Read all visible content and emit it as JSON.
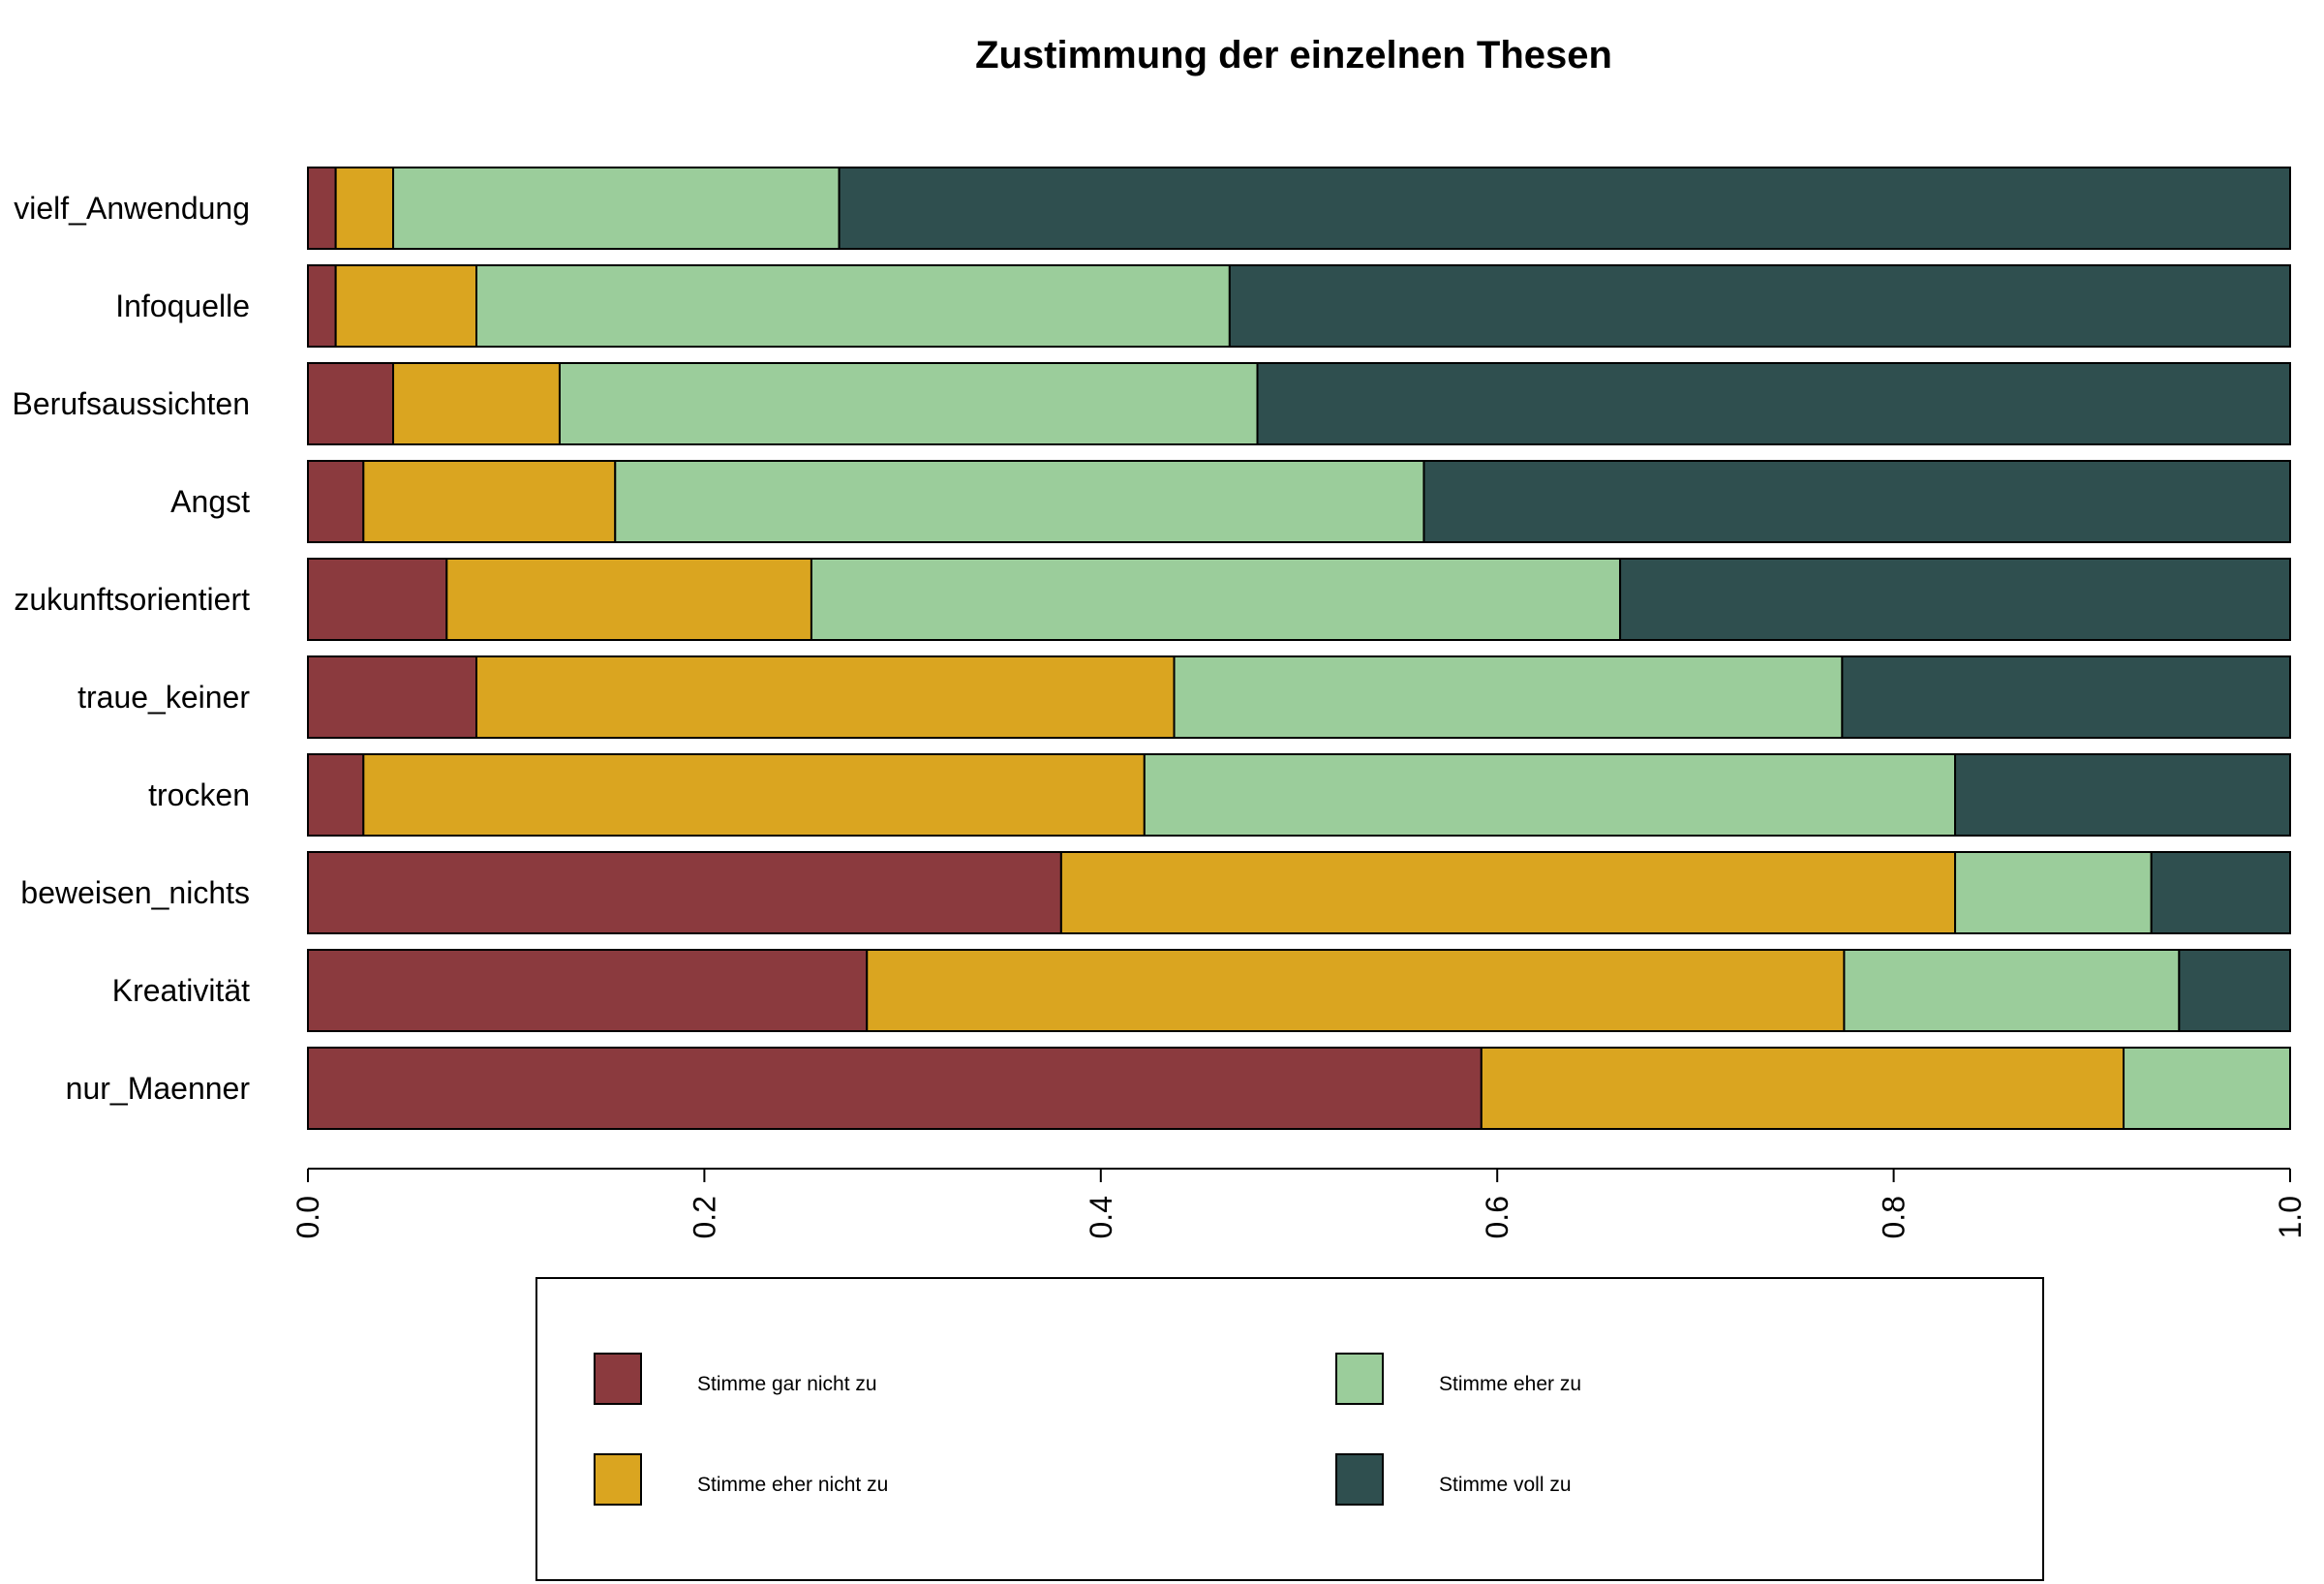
{
  "chart_data": {
    "type": "bar",
    "orientation": "horizontal",
    "stacked": true,
    "title": "Zustimmung der einzelnen Thesen",
    "xlabel": "",
    "ylabel": "",
    "xlim": [
      0,
      1
    ],
    "x_ticks": [
      "0.0",
      "0.2",
      "0.4",
      "0.6",
      "0.8",
      "1.0"
    ],
    "grid": false,
    "legend_position": "bottom",
    "categories": [
      "vielf_Anwendung",
      "Infoquelle",
      "Berufsaussichten",
      "Angst",
      "zukunftsorientiert",
      "traue_keiner",
      "trocken",
      "beweisen_nichts",
      "Kreativität",
      "nur_Maenner"
    ],
    "series": [
      {
        "name": "Stimme gar nicht zu",
        "color": "#8B3A3E",
        "values": [
          0.014,
          0.014,
          0.043,
          0.028,
          0.07,
          0.085,
          0.028,
          0.38,
          0.282,
          0.592
        ]
      },
      {
        "name": "Stimme eher nicht zu",
        "color": "#DAA520",
        "values": [
          0.029,
          0.071,
          0.084,
          0.127,
          0.184,
          0.352,
          0.394,
          0.451,
          0.493,
          0.324
        ]
      },
      {
        "name": "Stimme eher zu",
        "color": "#9BCD9B",
        "values": [
          0.225,
          0.38,
          0.352,
          0.408,
          0.408,
          0.337,
          0.409,
          0.099,
          0.169,
          0.084
        ]
      },
      {
        "name": "Stimme voll zu",
        "color": "#2F4F4F",
        "values": [
          0.732,
          0.535,
          0.521,
          0.437,
          0.338,
          0.226,
          0.169,
          0.07,
          0.056,
          0.0
        ]
      }
    ]
  }
}
